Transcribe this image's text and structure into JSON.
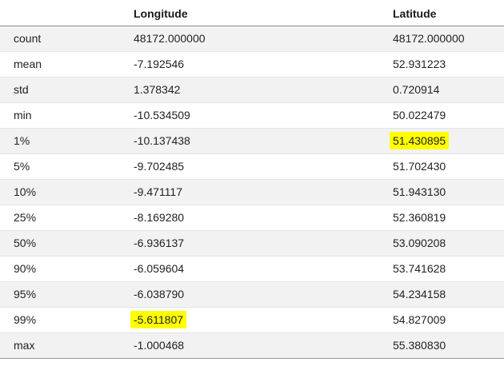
{
  "headers": {
    "index": "",
    "longitude": "Longitude",
    "latitude": "Latitude"
  },
  "rows": [
    {
      "label": "count",
      "lon": "48172.000000",
      "lat": "48172.000000"
    },
    {
      "label": "mean",
      "lon": "-7.192546",
      "lat": "52.931223"
    },
    {
      "label": "std",
      "lon": "1.378342",
      "lat": "0.720914"
    },
    {
      "label": "min",
      "lon": "-10.534509",
      "lat": "50.022479"
    },
    {
      "label": "1%",
      "lon": "-10.137438",
      "lat": "51.430895"
    },
    {
      "label": "5%",
      "lon": "-9.702485",
      "lat": "51.702430"
    },
    {
      "label": "10%",
      "lon": "-9.471117",
      "lat": "51.943130"
    },
    {
      "label": "25%",
      "lon": "-8.169280",
      "lat": "52.360819"
    },
    {
      "label": "50%",
      "lon": "-6.936137",
      "lat": "53.090208"
    },
    {
      "label": "90%",
      "lon": "-6.059604",
      "lat": "53.741628"
    },
    {
      "label": "95%",
      "lon": "-6.038790",
      "lat": "54.234158"
    },
    {
      "label": "99%",
      "lon": "-5.611807",
      "lat": "54.827009"
    },
    {
      "label": "max",
      "lon": "-1.000468",
      "lat": "55.380830"
    }
  ],
  "highlight_color": "#ffff00",
  "highlighted_cells": [
    {
      "row": "1%",
      "column": "Latitude"
    },
    {
      "row": "99%",
      "column": "Longitude"
    }
  ]
}
